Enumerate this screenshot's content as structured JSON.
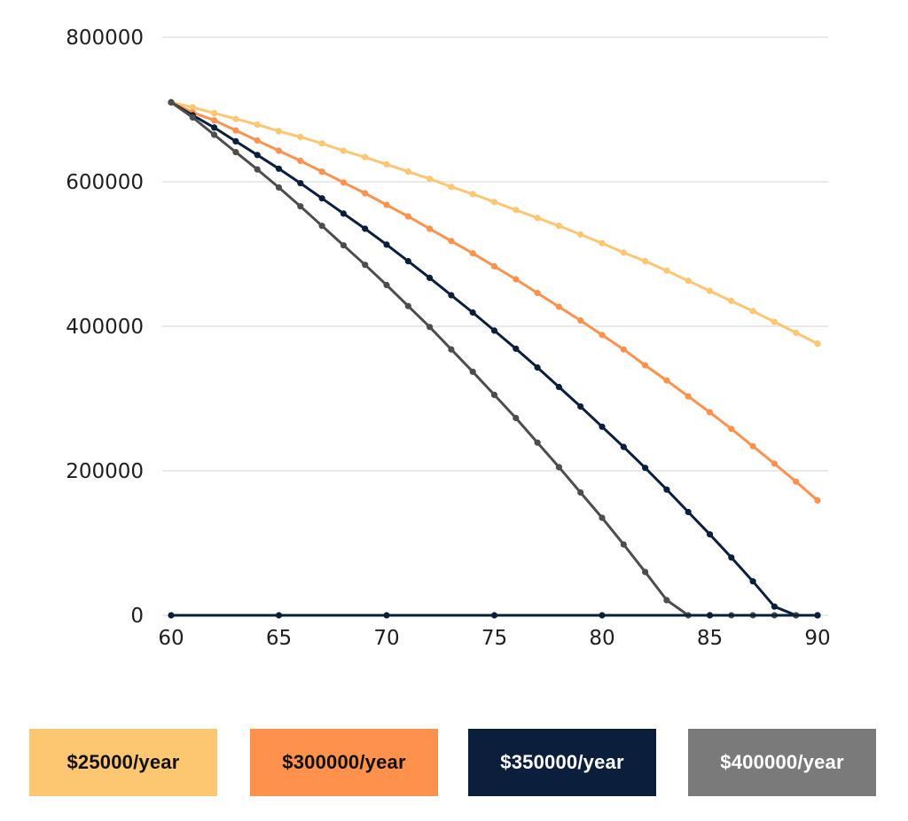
{
  "chart_data": {
    "type": "line",
    "title": "",
    "xlabel": "",
    "ylabel": "",
    "xlim": [
      60,
      90
    ],
    "ylim": [
      0,
      800000
    ],
    "x_ticks": [
      "60",
      "65",
      "70",
      "75",
      "80",
      "85",
      "90"
    ],
    "y_ticks": [
      "800000",
      "600000",
      "400000",
      "200000",
      "0"
    ],
    "grid": true,
    "legend_position": "bottom",
    "series": [
      {
        "name": "$25000/year",
        "color": "#FDC671",
        "x": [
          60,
          61,
          62,
          63,
          64,
          65,
          66,
          67,
          68,
          69,
          70,
          71,
          72,
          73,
          74,
          75,
          76,
          77,
          78,
          79,
          80,
          81,
          82,
          83,
          84,
          85,
          86,
          87,
          88,
          89,
          90
        ],
        "y": [
          710000,
          703000,
          695000,
          687000,
          679000,
          670000,
          662000,
          653000,
          643000,
          634000,
          624000,
          614000,
          604000,
          593000,
          583000,
          572000,
          561000,
          550000,
          539000,
          527000,
          515000,
          502000,
          490000,
          477000,
          463000,
          449000,
          435000,
          421000,
          406000,
          391000,
          376000
        ]
      },
      {
        "name": "$300000/year",
        "color": "#FE924C",
        "x": [
          60,
          61,
          62,
          63,
          64,
          65,
          66,
          67,
          68,
          69,
          70,
          71,
          72,
          73,
          74,
          75,
          76,
          77,
          78,
          79,
          80,
          81,
          82,
          83,
          84,
          85,
          86,
          87,
          88,
          89,
          90
        ],
        "y": [
          710000,
          696000,
          685000,
          671000,
          657000,
          643000,
          629000,
          614000,
          599000,
          584000,
          568000,
          552000,
          535000,
          518000,
          501000,
          483000,
          465000,
          446000,
          427000,
          408000,
          388000,
          368000,
          346000,
          325000,
          303000,
          281000,
          258000,
          234000,
          210000,
          185000,
          159000
        ]
      },
      {
        "name": "$350000/year",
        "color": "#0B1F3D",
        "x": [
          60,
          61,
          62,
          63,
          64,
          65,
          66,
          67,
          68,
          69,
          70,
          71,
          72,
          73,
          74,
          75,
          76,
          77,
          78,
          79,
          80,
          81,
          82,
          83,
          84,
          85,
          86,
          87,
          88,
          89,
          90
        ],
        "y": [
          710000,
          692000,
          675000,
          656000,
          637000,
          618000,
          598000,
          577000,
          556000,
          535000,
          513000,
          490000,
          467000,
          443000,
          419000,
          394000,
          369000,
          343000,
          316000,
          289000,
          261000,
          233000,
          204000,
          174000,
          143000,
          112000,
          80000,
          47000,
          12000,
          0,
          0
        ]
      },
      {
        "name": "$400000/year",
        "color": "#4D4D4D",
        "x": [
          60,
          61,
          62,
          63,
          64,
          65,
          66,
          67,
          68,
          69,
          70,
          71,
          72,
          73,
          74,
          75,
          76,
          77,
          78,
          79,
          80,
          81,
          82,
          83,
          84,
          85,
          86,
          87,
          88,
          89,
          90
        ],
        "y": [
          710000,
          689000,
          665000,
          641000,
          617000,
          592000,
          566000,
          539000,
          512000,
          485000,
          457000,
          428000,
          399000,
          368000,
          337000,
          305000,
          273000,
          239000,
          205000,
          170000,
          135000,
          98000,
          60000,
          21000,
          0,
          0,
          0,
          0,
          0,
          0,
          0
        ]
      },
      {
        "name": "",
        "color": "#0B1F3D",
        "x": [
          60,
          65,
          70,
          75,
          80,
          85,
          90
        ],
        "y": [
          0,
          0,
          0,
          0,
          0,
          0,
          0
        ]
      }
    ]
  },
  "legend": [
    {
      "label": "$25000/year",
      "bg": "#FDC671",
      "fg": "#111111"
    },
    {
      "label": "$300000/year",
      "bg": "#FE924C",
      "fg": "#111111"
    },
    {
      "label": "$350000/year",
      "bg": "#0B1F3D",
      "fg": "#FFFFFF"
    },
    {
      "label": "$400000/year",
      "bg": "#7A7A7A",
      "fg": "#FFFFFF"
    }
  ]
}
